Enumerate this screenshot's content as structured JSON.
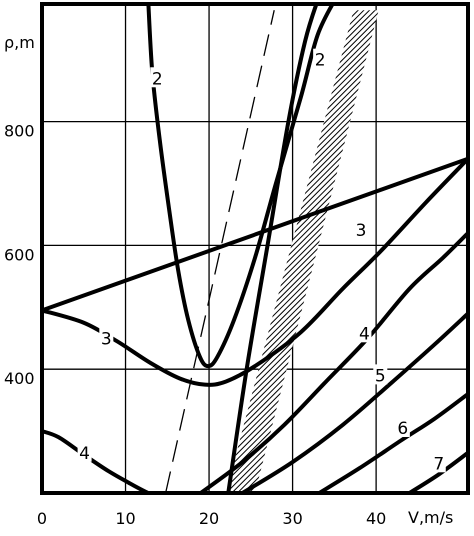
{
  "chart_data": {
    "type": "line",
    "title": "",
    "xlabel": "V,m/s",
    "ylabel": "ρ,m",
    "xlim": [
      0,
      51
    ],
    "ylim": [
      200,
      990
    ],
    "x_ticks": [
      {
        "value": 0,
        "label": "0"
      },
      {
        "value": 10,
        "label": "10"
      },
      {
        "value": 20,
        "label": "20"
      },
      {
        "value": 30,
        "label": "30"
      },
      {
        "value": 40,
        "label": "40"
      }
    ],
    "y_ticks": [
      {
        "value": 400,
        "label": "400"
      },
      {
        "value": 600,
        "label": "600"
      },
      {
        "value": 800,
        "label": "800"
      }
    ],
    "x_grid": [
      10,
      20,
      30,
      40
    ],
    "y_grid": [
      400,
      600,
      800
    ],
    "series": [
      {
        "label": "2",
        "points": [
          [
            12.7,
            1000
          ],
          [
            13.2,
            880
          ],
          [
            14.1,
            770
          ],
          [
            15.2,
            660
          ],
          [
            16.3,
            560
          ],
          [
            17.5,
            480
          ],
          [
            18.9,
            420
          ],
          [
            19.9,
            405
          ],
          [
            21.0,
            420
          ],
          [
            23.0,
            480
          ],
          [
            25.5,
            580
          ],
          [
            28.0,
            700
          ],
          [
            31.0,
            840
          ],
          [
            33.0,
            940
          ],
          [
            35.2,
            1000
          ]
        ],
        "label_at": [
          13.8,
          870
        ]
      },
      {
        "label": "2",
        "points": [
          [
            22.3,
            200
          ],
          [
            24.5,
            400
          ],
          [
            27.0,
            600
          ],
          [
            29.5,
            800
          ],
          [
            31.5,
            930
          ],
          [
            33.1,
            1000
          ]
        ],
        "label_at": [
          33.3,
          900
        ]
      },
      {
        "label": "3",
        "points": [
          [
            0,
            495
          ],
          [
            5.0,
            475
          ],
          [
            9.0,
            445
          ],
          [
            13.0,
            410
          ],
          [
            16.5,
            385
          ],
          [
            19.5,
            375
          ],
          [
            22.0,
            380
          ],
          [
            25.5,
            405
          ],
          [
            31.0,
            460
          ],
          [
            36.0,
            530
          ],
          [
            40.5,
            590
          ],
          [
            46.0,
            670
          ],
          [
            51.0,
            740
          ]
        ],
        "label_at": [
          7.7,
          450
        ]
      },
      {
        "label": "3",
        "points": [
          [
            0,
            495
          ],
          [
            51,
            740
          ]
        ],
        "label_at": [
          38.2,
          625
        ]
      },
      {
        "label": "4",
        "points": [
          [
            0,
            300
          ],
          [
            2.0,
            290
          ],
          [
            5.0,
            262
          ],
          [
            8.0,
            235
          ],
          [
            11.0,
            212
          ],
          [
            12.7,
            200
          ]
        ],
        "label_at": [
          5.1,
          265
        ]
      },
      {
        "label": "4",
        "points": [
          [
            19.0,
            200
          ],
          [
            24.0,
            250
          ],
          [
            29.0,
            310
          ],
          [
            34.0,
            380
          ],
          [
            39.0,
            450
          ],
          [
            44.0,
            530
          ],
          [
            48.0,
            580
          ],
          [
            51.0,
            620
          ]
        ],
        "label_at": [
          38.6,
          458
        ]
      },
      {
        "label": "5",
        "points": [
          [
            24.0,
            200
          ],
          [
            30.0,
            250
          ],
          [
            36.0,
            310
          ],
          [
            42.0,
            380
          ],
          [
            47.0,
            440
          ],
          [
            51.0,
            490
          ]
        ],
        "label_at": [
          40.5,
          390
        ]
      },
      {
        "label": "6",
        "points": [
          [
            33.2,
            200
          ],
          [
            38.0,
            240
          ],
          [
            43.0,
            285
          ],
          [
            47.0,
            320
          ],
          [
            51.0,
            360
          ]
        ],
        "label_at": [
          43.2,
          305
        ]
      },
      {
        "label": "7",
        "points": [
          [
            44.0,
            200
          ],
          [
            47.5,
            230
          ],
          [
            51.0,
            265
          ]
        ],
        "label_at": [
          47.5,
          248
        ]
      }
    ],
    "dashed_line": [
      [
        14.8,
        200
      ],
      [
        27.8,
        980
      ]
    ],
    "hatched_band": [
      [
        22.0,
        200
      ],
      [
        25.5,
        200
      ],
      [
        40.3,
        980
      ],
      [
        37.3,
        980
      ]
    ],
    "grid": true,
    "legend": "none"
  }
}
